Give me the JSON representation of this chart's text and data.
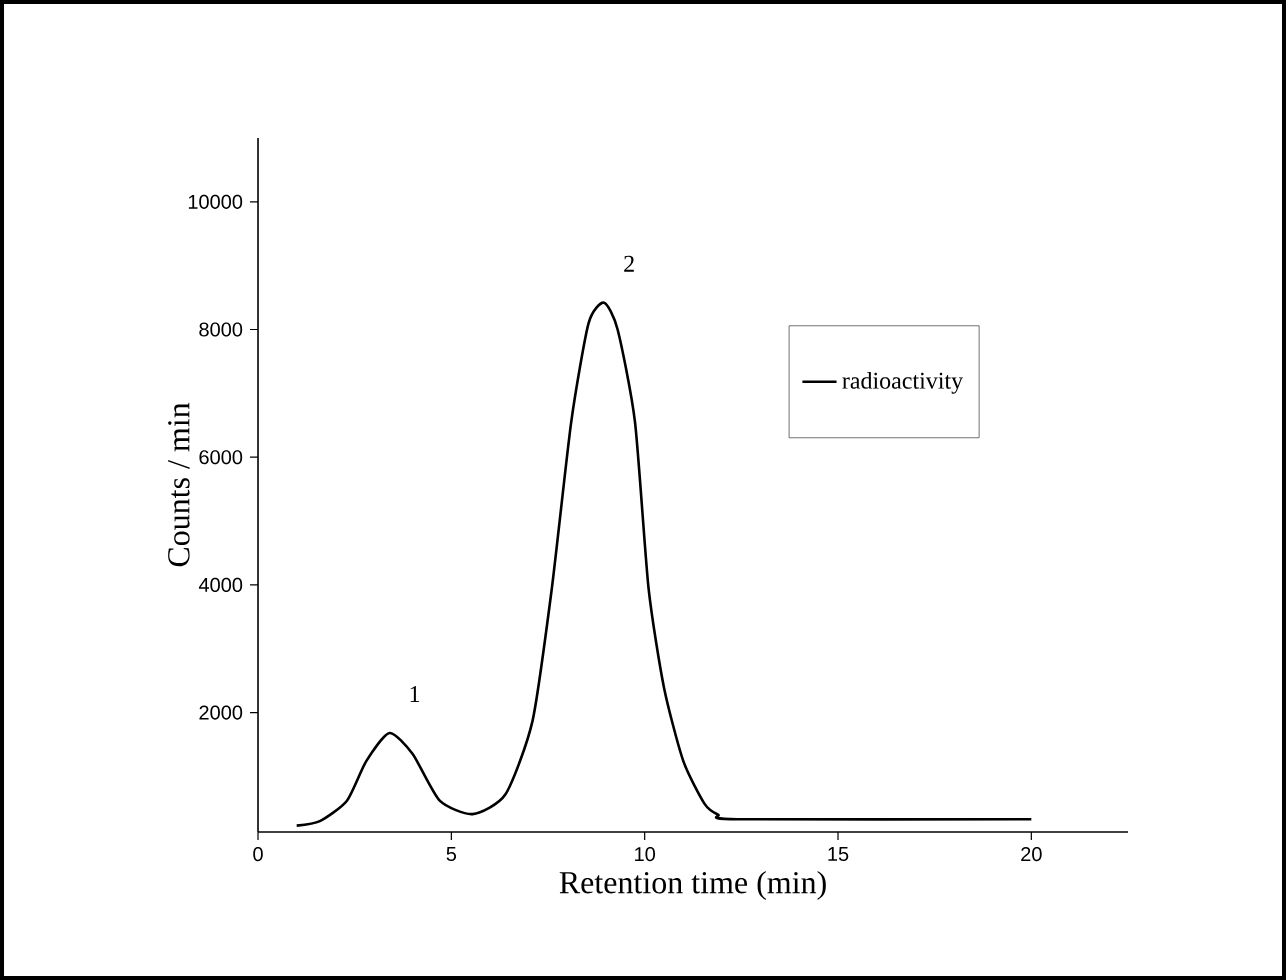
{
  "chart_data": {
    "type": "line",
    "xlabel": "Retention time (min)",
    "ylabel": "Counts / min",
    "x": [
      1.0,
      1.6,
      2.3,
      2.8,
      3.4,
      4.0,
      4.7,
      5.55,
      6.4,
      7.1,
      7.6,
      8.1,
      8.55,
      8.95,
      9.3,
      9.75,
      10.1,
      10.5,
      11.0,
      11.55,
      11.9,
      12.4,
      20
    ],
    "series": [
      {
        "name": "radioactivity",
        "color": "#000000",
        "values": [
          230,
          300,
          620,
          1240,
          1680,
          1350,
          620,
          410,
          720,
          1870,
          3950,
          6550,
          8100,
          8420,
          8000,
          6550,
          3950,
          2390,
          1240,
          570,
          400,
          330,
          330
        ]
      }
    ],
    "xlim": [
      0,
      22.5
    ],
    "ylim": [
      130,
      11000
    ],
    "xticks": [
      0,
      5,
      10,
      15,
      20
    ],
    "yticks": [
      2000,
      4000,
      6000,
      8000,
      10000
    ],
    "annotations": [
      {
        "text": "1",
        "x": 3.4,
        "y": 1680
      },
      {
        "text": "2",
        "x": 8.95,
        "y": 8420
      }
    ],
    "legend": "top right",
    "grid": false,
    "marker": "none",
    "line_style": "solid"
  }
}
